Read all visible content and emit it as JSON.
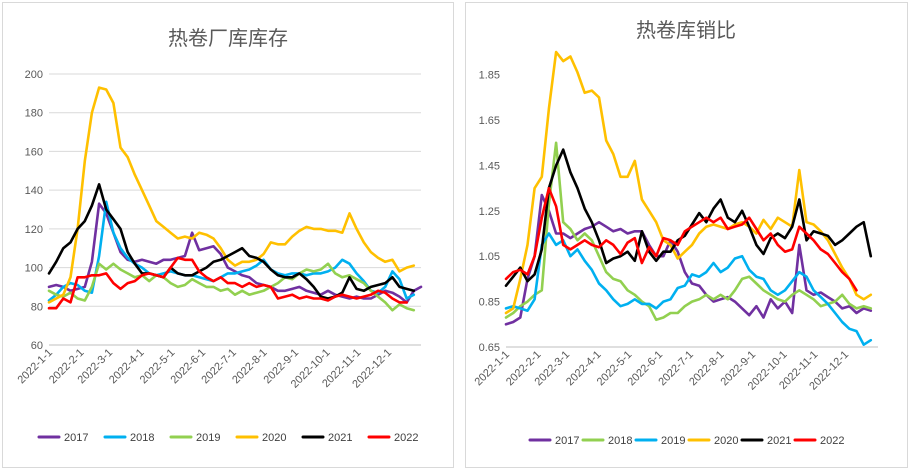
{
  "chart_data": [
    {
      "type": "line",
      "title": "热卷厂库库存",
      "ylim": [
        60,
        200
      ],
      "yticks": [
        60,
        80,
        100,
        120,
        140,
        160,
        180,
        200
      ],
      "ytick_labels": [
        "60",
        "80",
        "100",
        "120",
        "140",
        "160",
        "180",
        "200"
      ],
      "xlim": [
        0,
        52
      ],
      "x_ticks": [
        0,
        4.4,
        8.4,
        12.8,
        17.1,
        21.4,
        25.7,
        30,
        34.4,
        38.8,
        43.1,
        47.4
      ],
      "x_tick_labels": [
        "2022-1-1",
        "2022-2-1",
        "2022-3-1",
        "2022-4-1",
        "2022-5-1",
        "2022-6-1",
        "2022-7-1",
        "2022-8-1",
        "2022-9-1",
        "2022-10-1",
        "2022-11-1",
        "2022-12-1"
      ],
      "grid": true,
      "legend": "bottom",
      "series": [
        {
          "name": "2017",
          "color": "#7030a0",
          "values": [
            90,
            91,
            90,
            88,
            89,
            90,
            103,
            133,
            128,
            118,
            108,
            104,
            103,
            104,
            103,
            102,
            104,
            104,
            105,
            106,
            118,
            109,
            110,
            111,
            107,
            100,
            98,
            96,
            95,
            92,
            91,
            90,
            88,
            88,
            89,
            90,
            88,
            87,
            86,
            88,
            86,
            85,
            84,
            85,
            84,
            84,
            86,
            88,
            87,
            85,
            82,
            88,
            90
          ]
        },
        {
          "name": "2018",
          "color": "#00b0f0",
          "values": [
            83,
            86,
            90,
            92,
            91,
            88,
            87,
            106,
            134,
            118,
            110,
            105,
            102,
            100,
            97,
            96,
            97,
            98,
            97,
            96,
            96,
            95,
            94,
            93,
            95,
            97,
            97,
            98,
            99,
            101,
            104,
            99,
            97,
            96,
            97,
            97,
            96,
            97,
            97,
            98,
            100,
            104,
            102,
            97,
            93,
            88,
            87,
            90,
            98,
            94,
            84,
            86
          ]
        },
        {
          "name": "2019",
          "color": "#92d050",
          "values": [
            88,
            86,
            85,
            87,
            84,
            83,
            90,
            102,
            99,
            102,
            99,
            97,
            95,
            96,
            93,
            96,
            95,
            92,
            90,
            91,
            94,
            92,
            90,
            90,
            88,
            89,
            86,
            88,
            86,
            87,
            88,
            90,
            92,
            95,
            94,
            97,
            99,
            98,
            99,
            102,
            97,
            95,
            96,
            94,
            92,
            88,
            85,
            82,
            78,
            81,
            79,
            78
          ]
        },
        {
          "name": "2020",
          "color": "#ffc000",
          "values": [
            82,
            84,
            86,
            95,
            120,
            155,
            180,
            193,
            192,
            185,
            162,
            157,
            148,
            140,
            132,
            124,
            121,
            118,
            115,
            116,
            115,
            118,
            117,
            115,
            110,
            104,
            101,
            103,
            103,
            104,
            107,
            113,
            112,
            112,
            116,
            119,
            121,
            120,
            120,
            119,
            119,
            118,
            128,
            120,
            113,
            108,
            105,
            103,
            104,
            98,
            100,
            101
          ]
        },
        {
          "name": "2021",
          "color": "#000000",
          "values": [
            97,
            103,
            110,
            113,
            120,
            124,
            132,
            143,
            130,
            125,
            120,
            108,
            102,
            97,
            97,
            96,
            95,
            100,
            97,
            96,
            96,
            98,
            100,
            103,
            104,
            106,
            108,
            110,
            106,
            105,
            103,
            99,
            96,
            95,
            95,
            97,
            94,
            90,
            85,
            84,
            85,
            87,
            95,
            89,
            88,
            90,
            91,
            92,
            95,
            90,
            89,
            88
          ]
        },
        {
          "name": "2022",
          "color": "#ff0000",
          "values": [
            79,
            79,
            84,
            82,
            95,
            95,
            96,
            96,
            97,
            92,
            89,
            92,
            93,
            96,
            97,
            96,
            95,
            100,
            105,
            104,
            104,
            98,
            95,
            93,
            95,
            92,
            92,
            90,
            92,
            90,
            91,
            90,
            84,
            85,
            86,
            84,
            85,
            84,
            84,
            83,
            85,
            86,
            85,
            84,
            85,
            86,
            88,
            87,
            84,
            82,
            82
          ]
        }
      ]
    },
    {
      "type": "line",
      "title": "热卷库销比",
      "ylim": [
        0.65,
        1.95
      ],
      "yticks": [
        0.65,
        0.85,
        1.05,
        1.25,
        1.45,
        1.65,
        1.85
      ],
      "ytick_labels": [
        "0.65",
        "0.85",
        "1.05",
        "1.25",
        "1.45",
        "1.65",
        "1.85"
      ],
      "xlim": [
        0,
        52
      ],
      "x_ticks": [
        0,
        4.4,
        8.4,
        12.8,
        17.1,
        21.4,
        25.7,
        30,
        34.4,
        38.8,
        43.1,
        47.4
      ],
      "x_tick_labels": [
        "2022-1-1",
        "2022-2-1",
        "2022-3-1",
        "2022-4-1",
        "2022-5-1",
        "2022-6-1",
        "2022-7-1",
        "2022-8-1",
        "2022-9-1",
        "2022-10-1",
        "2022-11-1",
        "2022-12-1"
      ],
      "grid": false,
      "legend": "bottom",
      "series": [
        {
          "name": "2017",
          "color": "#7030a0",
          "values": [
            0.75,
            0.76,
            0.78,
            0.95,
            1.05,
            1.32,
            1.25,
            1.15,
            1.15,
            1.13,
            1.15,
            1.17,
            1.18,
            1.2,
            1.18,
            1.16,
            1.17,
            1.15,
            1.16,
            1.16,
            1.1,
            1.05,
            1.05,
            1.12,
            1.07,
            0.98,
            0.93,
            0.92,
            0.88,
            0.85,
            0.86,
            0.87,
            0.85,
            0.82,
            0.79,
            0.83,
            0.78,
            0.86,
            0.82,
            0.85,
            0.8,
            1.1,
            0.9,
            0.88,
            0.89,
            0.87,
            0.85,
            0.82,
            0.83,
            0.8,
            0.82,
            0.81
          ]
        },
        {
          "name": "2018",
          "color": "#92d050",
          "values": [
            0.78,
            0.8,
            0.83,
            0.85,
            0.88,
            0.9,
            1.28,
            1.55,
            1.2,
            1.17,
            1.12,
            1.15,
            1.12,
            1.05,
            0.98,
            0.95,
            0.94,
            0.9,
            0.88,
            0.85,
            0.83,
            0.77,
            0.78,
            0.8,
            0.8,
            0.83,
            0.85,
            0.86,
            0.88,
            0.86,
            0.88,
            0.86,
            0.9,
            0.95,
            0.96,
            0.93,
            0.9,
            0.88,
            0.86,
            0.85,
            0.88,
            0.9,
            0.88,
            0.86,
            0.83,
            0.84,
            0.85,
            0.88,
            0.84,
            0.82,
            0.83,
            0.82
          ]
        },
        {
          "name": "2019",
          "color": "#00b0f0",
          "values": [
            0.82,
            0.83,
            0.82,
            0.81,
            0.86,
            1.1,
            1.15,
            1.1,
            1.12,
            1.05,
            1.08,
            1.03,
            0.99,
            0.93,
            0.9,
            0.86,
            0.83,
            0.84,
            0.86,
            0.84,
            0.84,
            0.82,
            0.85,
            0.86,
            0.91,
            0.92,
            0.97,
            0.96,
            0.98,
            1.02,
            0.98,
            1.0,
            1.04,
            1.05,
            0.99,
            0.96,
            0.95,
            0.9,
            0.88,
            0.9,
            0.94,
            0.98,
            0.96,
            0.9,
            0.87,
            0.84,
            0.8,
            0.76,
            0.73,
            0.72,
            0.66,
            0.68
          ]
        },
        {
          "name": "2020",
          "color": "#ffc000",
          "values": [
            0.8,
            0.82,
            0.95,
            1.1,
            1.35,
            1.4,
            1.7,
            1.95,
            1.91,
            1.93,
            1.86,
            1.77,
            1.78,
            1.75,
            1.56,
            1.5,
            1.4,
            1.4,
            1.47,
            1.3,
            1.25,
            1.2,
            1.12,
            1.1,
            1.04,
            1.07,
            1.1,
            1.15,
            1.18,
            1.19,
            1.18,
            1.17,
            1.19,
            1.2,
            1.18,
            1.15,
            1.21,
            1.17,
            1.22,
            1.2,
            1.18,
            1.43,
            1.2,
            1.19,
            1.16,
            1.12,
            1.06,
            1.0,
            0.95,
            0.88,
            0.86,
            0.88
          ]
        },
        {
          "name": "2021",
          "color": "#000000",
          "values": [
            0.92,
            0.96,
            1.0,
            0.94,
            0.97,
            1.08,
            1.35,
            1.45,
            1.52,
            1.42,
            1.35,
            1.26,
            1.2,
            1.12,
            1.02,
            1.04,
            1.05,
            1.07,
            1.03,
            1.16,
            1.07,
            1.03,
            1.07,
            1.07,
            1.12,
            1.14,
            1.19,
            1.24,
            1.2,
            1.26,
            1.3,
            1.22,
            1.2,
            1.25,
            1.18,
            1.1,
            1.06,
            1.13,
            1.15,
            1.13,
            1.18,
            1.3,
            1.12,
            1.16,
            1.15,
            1.14,
            1.1,
            1.12,
            1.15,
            1.18,
            1.2,
            1.05
          ]
        },
        {
          "name": "2022",
          "color": "#ff0000",
          "values": [
            0.95,
            0.98,
            0.99,
            0.97,
            1.05,
            1.22,
            1.35,
            1.27,
            1.1,
            1.08,
            1.1,
            1.12,
            1.1,
            1.09,
            1.12,
            1.1,
            1.06,
            1.11,
            1.13,
            1.02,
            1.09,
            1.05,
            1.13,
            1.12,
            1.1,
            1.16,
            1.18,
            1.2,
            1.22,
            1.2,
            1.22,
            1.17,
            1.18,
            1.19,
            1.22,
            1.17,
            1.12,
            1.15,
            1.1,
            1.07,
            1.08,
            1.18,
            1.15,
            1.12,
            1.08,
            1.06,
            1.02,
            0.98,
            0.95,
            0.9
          ]
        }
      ]
    }
  ]
}
